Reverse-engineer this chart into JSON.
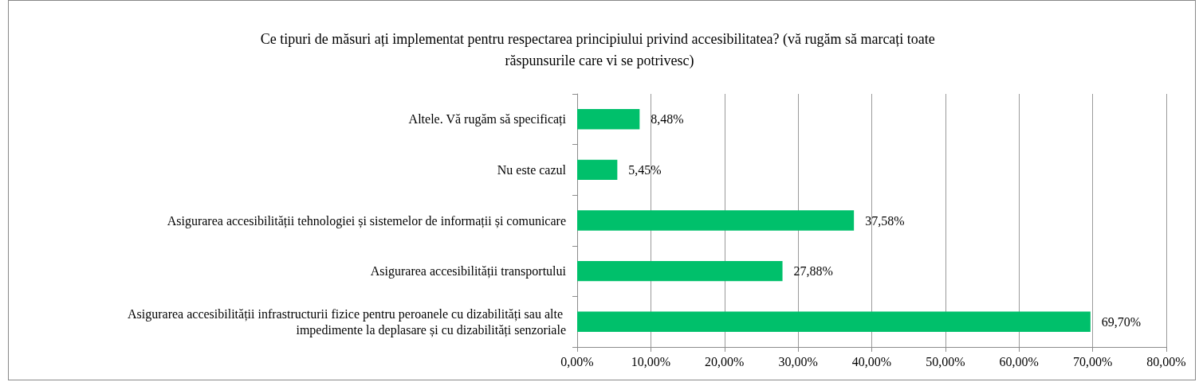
{
  "chart_data": {
    "type": "bar",
    "orientation": "horizontal",
    "title": "Ce tipuri de măsuri ați implementat pentru respectarea principiului privind accesibilitatea? (vă rugăm să marcați toate răspunsurile care vi se potrivesc)",
    "categories": [
      "Altele. Vă rugăm să specificați",
      "Nu este cazul",
      "Asigurarea accesibilității tehnologiei și sistemelor de informații și comunicare",
      "Asigurarea accesibilității transportului",
      "Asigurarea accesibilității infrastructurii fizice pentru peroanele cu dizabilități sau alte impedimente la deplasare și cu dizabilități senzoriale"
    ],
    "values": [
      8.48,
      5.45,
      37.58,
      27.88,
      69.7
    ],
    "value_labels": [
      "8,48%",
      "5,45%",
      "37,58%",
      "27,88%",
      "69,70%"
    ],
    "color": "#00c06b",
    "xlim": [
      0,
      80
    ],
    "xticks": [
      {
        "value": 0,
        "label": "0,00%"
      },
      {
        "value": 10,
        "label": "10,00%"
      },
      {
        "value": 20,
        "label": "20,00%"
      },
      {
        "value": 30,
        "label": "30,00%"
      },
      {
        "value": 40,
        "label": "40,00%"
      },
      {
        "value": 50,
        "label": "50,00%"
      },
      {
        "value": 60,
        "label": "60,00%"
      },
      {
        "value": 70,
        "label": "70,00%"
      },
      {
        "value": 80,
        "label": "80,00%"
      }
    ],
    "grid": "x"
  }
}
